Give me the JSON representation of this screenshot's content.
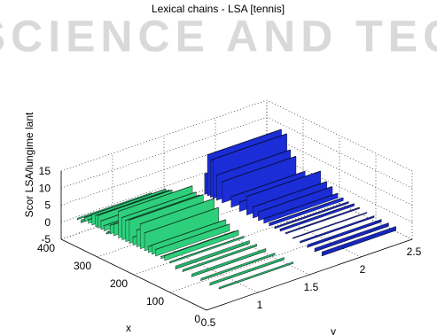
{
  "watermark": "SCIENCE AND TEC",
  "chart_data": {
    "type": "3d-bar",
    "title": "Lexical chains - LSA [tennis]",
    "xlabel": "x",
    "ylabel": "y",
    "zlabel": "Scor LSA/lungime lant",
    "xlim": [
      0,
      400
    ],
    "ylim": [
      0.5,
      2.5
    ],
    "zlim": [
      -5,
      15
    ],
    "x_ticks": [
      "0",
      "100",
      "200",
      "300",
      "400"
    ],
    "y_ticks": [
      "0.5",
      "1",
      "1.5",
      "2",
      "2.5"
    ],
    "z_ticks": [
      "-5",
      "0",
      "5",
      "10",
      "15"
    ],
    "grid": true,
    "series": [
      {
        "y": 1,
        "color": "#2ecf7c",
        "points": [
          [
            5,
            -0.5
          ],
          [
            30,
            -0.7
          ],
          [
            55,
            -0.6
          ],
          [
            80,
            -0.8
          ],
          [
            105,
            -0.6
          ],
          [
            125,
            -0.9
          ],
          [
            140,
            0.4
          ],
          [
            155,
            1.4
          ],
          [
            165,
            0.6
          ],
          [
            180,
            1.9
          ],
          [
            190,
            2.7
          ],
          [
            200,
            1.7
          ],
          [
            210,
            5.2
          ],
          [
            222,
            7.2
          ],
          [
            232,
            4.9
          ],
          [
            242,
            2.3
          ],
          [
            252,
            6.8
          ],
          [
            262,
            6.2
          ],
          [
            272,
            6.5
          ],
          [
            282,
            7.8
          ],
          [
            295,
            3.3
          ],
          [
            305,
            2.5
          ],
          [
            310,
            0.4
          ],
          [
            315,
            -0.5
          ],
          [
            322,
            1.5
          ],
          [
            330,
            2.5
          ],
          [
            338,
            3.7
          ],
          [
            345,
            3.3
          ],
          [
            355,
            3.1
          ],
          [
            365,
            1.0
          ],
          [
            375,
            1.1
          ],
          [
            385,
            -0.8
          ],
          [
            395,
            -0.4
          ]
        ]
      },
      {
        "y": 2,
        "color": "#1a2dd6",
        "points": [
          [
            5,
            -1.2
          ],
          [
            25,
            -1.0
          ],
          [
            45,
            -0.8
          ],
          [
            65,
            -0.5
          ],
          [
            85,
            -0.3
          ],
          [
            105,
            0.3
          ],
          [
            120,
            0.6
          ],
          [
            135,
            0.4
          ],
          [
            150,
            0.8
          ],
          [
            165,
            1.3
          ],
          [
            180,
            2.5
          ],
          [
            195,
            3.2
          ],
          [
            212,
            5.4
          ],
          [
            232,
            2.7
          ],
          [
            255,
            3.1
          ],
          [
            280,
            6.2
          ],
          [
            295,
            7.3
          ],
          [
            305,
            11.5
          ],
          [
            312,
            10.8
          ],
          [
            320,
            12.0
          ],
          [
            328,
            6.0
          ]
        ]
      }
    ]
  }
}
